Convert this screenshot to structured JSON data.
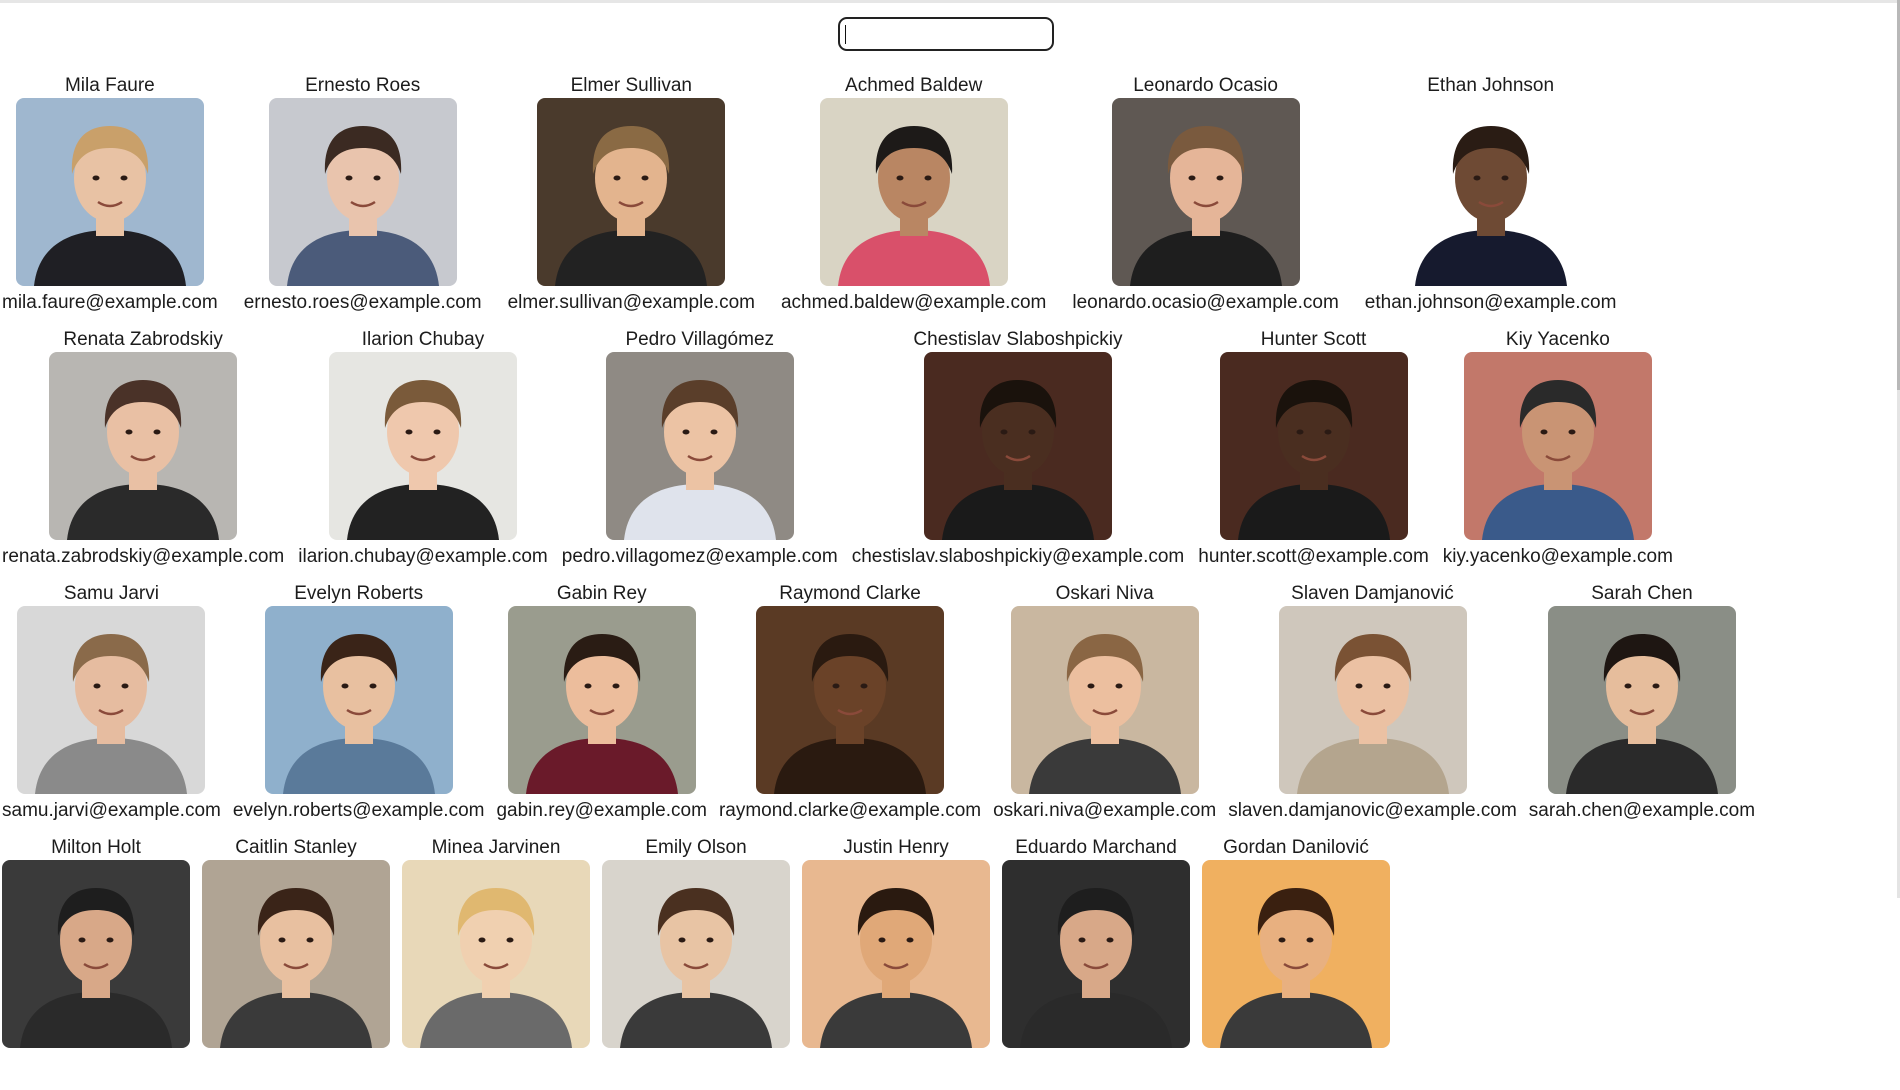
{
  "search": {
    "value": "",
    "placeholder": ""
  },
  "rows": [
    [
      {
        "name": "Mila Faure",
        "email": "mila.faure@example.com",
        "bg": "#9fb7cf",
        "skin": "#e8c2a4",
        "hair": "#c9a06a",
        "shirt": "#1f1f24"
      },
      {
        "name": "Ernesto Roes",
        "email": "ernesto.roes@example.com",
        "bg": "#c7c9cf",
        "skin": "#e9c4ad",
        "hair": "#3b2a22",
        "shirt": "#4b5b7a"
      },
      {
        "name": "Elmer Sullivan",
        "email": "elmer.sullivan@example.com",
        "bg": "#4a3a2c",
        "skin": "#e3b48e",
        "hair": "#8a6a44",
        "shirt": "#222222"
      },
      {
        "name": "Achmed Baldew",
        "email": "achmed.baldew@example.com",
        "bg": "#d9d4c4",
        "skin": "#b98663",
        "hair": "#1d1a18",
        "shirt": "#d9506a"
      },
      {
        "name": "Leonardo Ocasio",
        "email": "leonardo.ocasio@example.com",
        "bg": "#5f5853",
        "skin": "#e5b598",
        "hair": "#7a5a3e",
        "shirt": "#1e1e1e"
      },
      {
        "name": "Ethan Johnson",
        "email": "ethan.johnson@example.com",
        "bg": "#ffffff",
        "skin": "#6e4a34",
        "hair": "#2a1c14",
        "shirt": "#161a2e"
      }
    ],
    [
      {
        "name": "Renata Zabrodskiy",
        "email": "renata.zabrodskiy@example.com",
        "bg": "#b8b6b2",
        "skin": "#e9c0a4",
        "hair": "#4a3228",
        "shirt": "#2a2a2a"
      },
      {
        "name": "Ilarion Chubay",
        "email": "ilarion.chubay@example.com",
        "bg": "#e6e6e2",
        "skin": "#efc8ad",
        "hair": "#7a5a3a",
        "shirt": "#222222"
      },
      {
        "name": "Pedro Villagómez",
        "email": "pedro.villagomez@example.com",
        "bg": "#8f8a84",
        "skin": "#ecc3a4",
        "hair": "#5a3e2a",
        "shirt": "#dfe3ec"
      },
      {
        "name": "Chestislav Slaboshpickiy",
        "email": "chestislav.slaboshpickiy@example.com",
        "bg": "#4a2a20",
        "skin": "#4a2e20",
        "hair": "#1a120c",
        "shirt": "#1a1a1a"
      },
      {
        "name": "Hunter Scott",
        "email": "hunter.scott@example.com",
        "bg": "#4a2a20",
        "skin": "#4a2e20",
        "hair": "#1a120c",
        "shirt": "#1a1a1a"
      },
      {
        "name": "Kiy Yacenko",
        "email": "kiy.yacenko@example.com",
        "bg": "#c2786a",
        "skin": "#c99474",
        "hair": "#2a2a2a",
        "shirt": "#3a5a8a"
      }
    ],
    [
      {
        "name": "Samu Jarvi",
        "email": "samu.jarvi@example.com",
        "bg": "#d8d8d8",
        "skin": "#e6bca0",
        "hair": "#8a6a4a",
        "shirt": "#8a8a8a"
      },
      {
        "name": "Evelyn Roberts",
        "email": "evelyn.roberts@example.com",
        "bg": "#8fb0cc",
        "skin": "#e8c0a0",
        "hair": "#3a2418",
        "shirt": "#5a7a9a"
      },
      {
        "name": "Gabin Rey",
        "email": "gabin.rey@example.com",
        "bg": "#9a9c8e",
        "skin": "#ecbd9c",
        "hair": "#2a1c14",
        "shirt": "#6a1a2a"
      },
      {
        "name": "Raymond Clarke",
        "email": "raymond.clarke@example.com",
        "bg": "#5a3a24",
        "skin": "#6a4228",
        "hair": "#2a1a10",
        "shirt": "#2a1a10"
      },
      {
        "name": "Oskari Niva",
        "email": "oskari.niva@example.com",
        "bg": "#c9b7a0",
        "skin": "#ecbf9f",
        "hair": "#8a6644",
        "shirt": "#3a3a3a"
      },
      {
        "name": "Slaven Damjanović",
        "email": "slaven.damjanovic@example.com",
        "bg": "#cfc7bc",
        "skin": "#ebc1a3",
        "hair": "#7a5234",
        "shirt": "#b4a58e"
      },
      {
        "name": "Sarah Chen",
        "email": "sarah.chen@example.com",
        "bg": "#8a8e86",
        "skin": "#e6bd9c",
        "hair": "#1e1612",
        "shirt": "#2a2a2a"
      }
    ],
    [
      {
        "name": "Milton Holt",
        "email": "",
        "bg": "#3a3a3a",
        "skin": "#d8a888",
        "hair": "#1e1e1e",
        "shirt": "#2a2a2a"
      },
      {
        "name": "Caitlin Stanley",
        "email": "",
        "bg": "#b0a494",
        "skin": "#e8c0a0",
        "hair": "#3a2418",
        "shirt": "#3a3a3a"
      },
      {
        "name": "Minea Jarvinen",
        "email": "",
        "bg": "#e8d8b8",
        "skin": "#f0d0b0",
        "hair": "#e0b870",
        "shirt": "#6a6a6a"
      },
      {
        "name": "Emily Olson",
        "email": "",
        "bg": "#d8d4cc",
        "skin": "#e8c4a4",
        "hair": "#4a3020",
        "shirt": "#3a3a3a"
      },
      {
        "name": "Justin Henry",
        "email": "",
        "bg": "#e8b890",
        "skin": "#e0a878",
        "hair": "#2a1a10",
        "shirt": "#3a3a3a"
      },
      {
        "name": "Eduardo Marchand",
        "email": "",
        "bg": "#2e2e2e",
        "skin": "#d8a888",
        "hair": "#1e1e1e",
        "shirt": "#2a2a2a"
      },
      {
        "name": "Gordan Danilović",
        "email": "",
        "bg": "#f0b060",
        "skin": "#e8b080",
        "hair": "#3a2010",
        "shirt": "#3a3a3a"
      }
    ]
  ]
}
